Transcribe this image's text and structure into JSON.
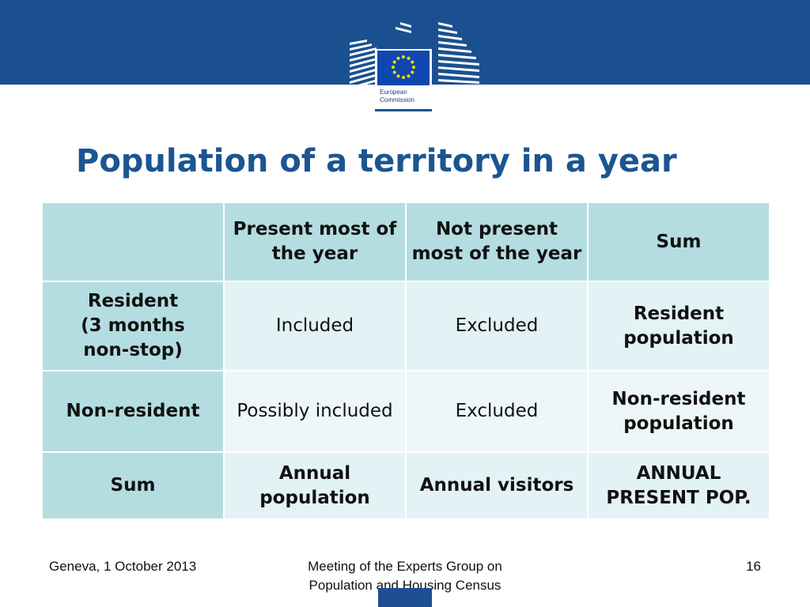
{
  "logo": {
    "text_line1": "European",
    "text_line2": "Commission",
    "flag_color": "#0f47af",
    "star_color": "#ffdd00"
  },
  "header": {
    "band_color": "#1a5090",
    "title": "Population of a territory in a year"
  },
  "table": {
    "columns": [
      "",
      "Present most of the year",
      "Not present most of the year",
      "Sum"
    ],
    "rows": [
      {
        "label": "Resident\n(3 months\nnon-stop)",
        "cells": [
          "Included",
          "Excluded",
          "Resident population"
        ]
      },
      {
        "label": "Non-resident",
        "cells": [
          "Possibly included",
          "Excluded",
          "Non-resident population"
        ]
      },
      {
        "label": "Sum",
        "cells": [
          "Annual population",
          "Annual visitors",
          "ANNUAL PRESENT POP."
        ]
      }
    ]
  },
  "footer": {
    "left": "Geneva, 1 October 2013",
    "center_line1": "Meeting of the Experts Group on",
    "center_line2": "Population and Housing Census",
    "page_number": "16"
  }
}
